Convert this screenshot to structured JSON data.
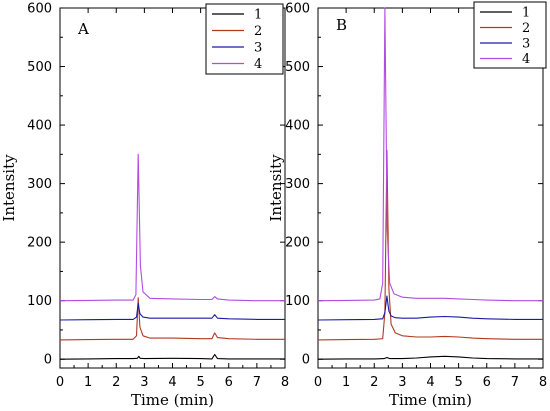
{
  "chart_data": [
    {
      "type": "line",
      "panel_label": "A",
      "xlabel": "Time (min)",
      "ylabel": "Intensity",
      "xlim": [
        0,
        8
      ],
      "ylim": [
        -15,
        600
      ],
      "x_ticks": [
        0,
        1,
        2,
        3,
        4,
        5,
        6,
        7,
        8
      ],
      "y_ticks": [
        0,
        100,
        200,
        300,
        400,
        500,
        600
      ],
      "legend": "top-right",
      "series": [
        {
          "name": "1",
          "color": "#000000",
          "points": [
            [
              0,
              0
            ],
            [
              1,
              0.5
            ],
            [
              2,
              1
            ],
            [
              2.6,
              1
            ],
            [
              2.75,
              1.5
            ],
            [
              2.8,
              5
            ],
            [
              2.85,
              1.5
            ],
            [
              3,
              1
            ],
            [
              4,
              1.5
            ],
            [
              5,
              1
            ],
            [
              5.4,
              0.5
            ],
            [
              5.5,
              8
            ],
            [
              5.6,
              1
            ],
            [
              6,
              0.5
            ],
            [
              7,
              0.5
            ],
            [
              8,
              0.5
            ]
          ]
        },
        {
          "name": "2",
          "color": "#b03a1e",
          "points": [
            [
              0,
              33
            ],
            [
              1,
              33.5
            ],
            [
              2,
              34
            ],
            [
              2.6,
              34
            ],
            [
              2.72,
              40
            ],
            [
              2.78,
              105
            ],
            [
              2.84,
              55
            ],
            [
              2.95,
              40
            ],
            [
              3.2,
              36
            ],
            [
              4,
              36
            ],
            [
              5,
              35
            ],
            [
              5.4,
              35
            ],
            [
              5.5,
              45
            ],
            [
              5.6,
              37
            ],
            [
              6,
              35
            ],
            [
              7,
              34
            ],
            [
              8,
              34
            ]
          ]
        },
        {
          "name": "3",
          "color": "#1a1aa8",
          "points": [
            [
              0,
              67
            ],
            [
              1,
              67.5
            ],
            [
              2,
              68
            ],
            [
              2.6,
              68
            ],
            [
              2.72,
              72
            ],
            [
              2.78,
              95
            ],
            [
              2.84,
              78
            ],
            [
              2.95,
              72
            ],
            [
              3.2,
              70
            ],
            [
              4,
              70
            ],
            [
              5,
              70
            ],
            [
              5.4,
              70
            ],
            [
              5.5,
              76
            ],
            [
              5.6,
              70
            ],
            [
              6,
              69
            ],
            [
              7,
              68
            ],
            [
              8,
              68
            ]
          ]
        },
        {
          "name": "4",
          "color": "#b44be1",
          "points": [
            [
              0,
              100
            ],
            [
              1,
              100.5
            ],
            [
              2,
              101
            ],
            [
              2.6,
              101
            ],
            [
              2.7,
              110
            ],
            [
              2.78,
              350
            ],
            [
              2.86,
              160
            ],
            [
              2.95,
              115
            ],
            [
              3.2,
              104
            ],
            [
              4,
              103
            ],
            [
              5,
              102
            ],
            [
              5.4,
              102
            ],
            [
              5.5,
              107
            ],
            [
              5.6,
              103
            ],
            [
              6,
              101
            ],
            [
              7,
              100
            ],
            [
              8,
              100
            ]
          ]
        }
      ]
    },
    {
      "type": "line",
      "panel_label": "B",
      "xlabel": "Time (min)",
      "ylabel": "Intensity",
      "xlim": [
        0,
        8
      ],
      "ylim": [
        -15,
        600
      ],
      "x_ticks": [
        0,
        1,
        2,
        3,
        4,
        5,
        6,
        7,
        8
      ],
      "y_ticks": [
        0,
        100,
        200,
        300,
        400,
        500,
        600
      ],
      "legend": "top-right",
      "series": [
        {
          "name": "1",
          "color": "#000000",
          "points": [
            [
              0,
              0
            ],
            [
              1,
              0.5
            ],
            [
              2,
              0.5
            ],
            [
              2.35,
              1
            ],
            [
              2.45,
              3
            ],
            [
              2.55,
              1
            ],
            [
              3,
              1
            ],
            [
              3.5,
              2
            ],
            [
              4,
              4
            ],
            [
              4.5,
              5
            ],
            [
              5,
              4
            ],
            [
              5.5,
              2
            ],
            [
              6,
              1
            ],
            [
              7,
              0.5
            ],
            [
              8,
              0.5
            ]
          ]
        },
        {
          "name": "2",
          "color": "#b03a1e",
          "points": [
            [
              0,
              33
            ],
            [
              1,
              33.5
            ],
            [
              2,
              34
            ],
            [
              2.3,
              35
            ],
            [
              2.38,
              80
            ],
            [
              2.45,
              357
            ],
            [
              2.52,
              120
            ],
            [
              2.6,
              60
            ],
            [
              2.75,
              45
            ],
            [
              3,
              40
            ],
            [
              3.5,
              38
            ],
            [
              4,
              38
            ],
            [
              4.5,
              39
            ],
            [
              5,
              38
            ],
            [
              5.5,
              36
            ],
            [
              6,
              35
            ],
            [
              7,
              34
            ],
            [
              8,
              34
            ]
          ]
        },
        {
          "name": "3",
          "color": "#1a1aa8",
          "points": [
            [
              0,
              67
            ],
            [
              1,
              67.5
            ],
            [
              2,
              68
            ],
            [
              2.3,
              69
            ],
            [
              2.38,
              80
            ],
            [
              2.45,
              108
            ],
            [
              2.52,
              82
            ],
            [
              2.6,
              74
            ],
            [
              2.75,
              71
            ],
            [
              3,
              70
            ],
            [
              3.5,
              70
            ],
            [
              4,
              72
            ],
            [
              4.5,
              73
            ],
            [
              5,
              72
            ],
            [
              5.5,
              70
            ],
            [
              6,
              69
            ],
            [
              7,
              68
            ],
            [
              8,
              68
            ]
          ]
        },
        {
          "name": "4",
          "color": "#b44be1",
          "points": [
            [
              0,
              100
            ],
            [
              1,
              100.5
            ],
            [
              2,
              101
            ],
            [
              2.2,
              103
            ],
            [
              2.3,
              130
            ],
            [
              2.38,
              600
            ],
            [
              2.46,
              220
            ],
            [
              2.55,
              130
            ],
            [
              2.7,
              112
            ],
            [
              3,
              106
            ],
            [
              3.5,
              104
            ],
            [
              4,
              104
            ],
            [
              4.5,
              104
            ],
            [
              5,
              103
            ],
            [
              5.5,
              102
            ],
            [
              6,
              101
            ],
            [
              7,
              100
            ],
            [
              8,
              100
            ]
          ]
        }
      ]
    }
  ]
}
